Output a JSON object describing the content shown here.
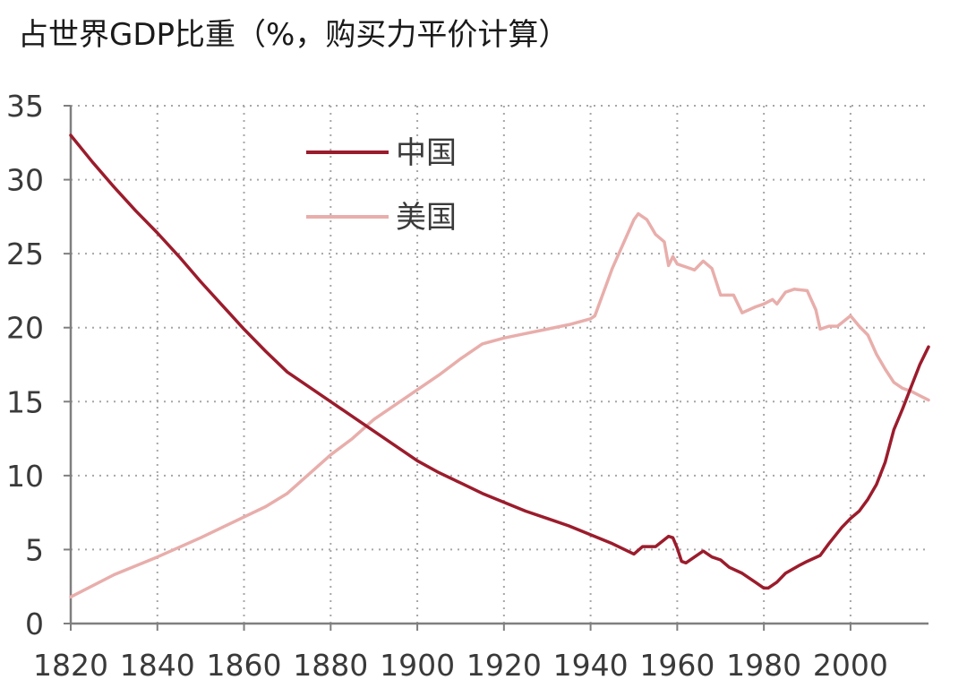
{
  "chart_data": {
    "type": "line",
    "title": "占世界GDP比重（%，购买力平价计算）",
    "xlabel": "",
    "ylabel": "",
    "xlim": [
      1820,
      2018
    ],
    "ylim": [
      0,
      35
    ],
    "xticks": [
      1820,
      1840,
      1860,
      1880,
      1900,
      1920,
      1940,
      1960,
      1980,
      2000
    ],
    "yticks": [
      0,
      5,
      10,
      15,
      20,
      25,
      30,
      35
    ],
    "grid": true,
    "legend_position": "top-center",
    "series": [
      {
        "name": "中国",
        "color": "#9b1c2c",
        "points": [
          [
            1820,
            33.0
          ],
          [
            1825,
            31.2
          ],
          [
            1830,
            29.5
          ],
          [
            1835,
            27.9
          ],
          [
            1840,
            26.4
          ],
          [
            1845,
            24.8
          ],
          [
            1850,
            23.1
          ],
          [
            1855,
            21.5
          ],
          [
            1860,
            19.9
          ],
          [
            1865,
            18.4
          ],
          [
            1870,
            17.0
          ],
          [
            1875,
            16.0
          ],
          [
            1880,
            15.0
          ],
          [
            1885,
            14.0
          ],
          [
            1890,
            13.0
          ],
          [
            1895,
            12.0
          ],
          [
            1900,
            11.0
          ],
          [
            1905,
            10.2
          ],
          [
            1910,
            9.5
          ],
          [
            1915,
            8.8
          ],
          [
            1920,
            8.2
          ],
          [
            1925,
            7.6
          ],
          [
            1930,
            7.1
          ],
          [
            1935,
            6.6
          ],
          [
            1940,
            6.0
          ],
          [
            1945,
            5.4
          ],
          [
            1950,
            4.7
          ],
          [
            1952,
            5.2
          ],
          [
            1955,
            5.2
          ],
          [
            1958,
            5.9
          ],
          [
            1959,
            5.8
          ],
          [
            1960,
            5.1
          ],
          [
            1961,
            4.2
          ],
          [
            1962,
            4.1
          ],
          [
            1964,
            4.5
          ],
          [
            1966,
            4.9
          ],
          [
            1968,
            4.5
          ],
          [
            1970,
            4.3
          ],
          [
            1972,
            3.8
          ],
          [
            1975,
            3.4
          ],
          [
            1978,
            2.8
          ],
          [
            1980,
            2.4
          ],
          [
            1981,
            2.4
          ],
          [
            1983,
            2.8
          ],
          [
            1985,
            3.4
          ],
          [
            1988,
            3.9
          ],
          [
            1990,
            4.2
          ],
          [
            1993,
            4.6
          ],
          [
            1995,
            5.4
          ],
          [
            1998,
            6.5
          ],
          [
            2000,
            7.1
          ],
          [
            2002,
            7.6
          ],
          [
            2004,
            8.4
          ],
          [
            2006,
            9.4
          ],
          [
            2008,
            10.9
          ],
          [
            2010,
            13.1
          ],
          [
            2012,
            14.5
          ],
          [
            2014,
            16.0
          ],
          [
            2016,
            17.5
          ],
          [
            2018,
            18.7
          ]
        ]
      },
      {
        "name": "美国",
        "color": "#e8aeab",
        "points": [
          [
            1820,
            1.8
          ],
          [
            1830,
            3.3
          ],
          [
            1840,
            4.5
          ],
          [
            1850,
            5.8
          ],
          [
            1860,
            7.2
          ],
          [
            1865,
            7.9
          ],
          [
            1870,
            8.8
          ],
          [
            1875,
            10.1
          ],
          [
            1880,
            11.4
          ],
          [
            1885,
            12.5
          ],
          [
            1890,
            13.8
          ],
          [
            1895,
            14.8
          ],
          [
            1900,
            15.8
          ],
          [
            1905,
            16.8
          ],
          [
            1910,
            17.9
          ],
          [
            1915,
            18.9
          ],
          [
            1920,
            19.3
          ],
          [
            1925,
            19.6
          ],
          [
            1930,
            19.9
          ],
          [
            1935,
            20.2
          ],
          [
            1940,
            20.6
          ],
          [
            1941,
            20.8
          ],
          [
            1945,
            24.0
          ],
          [
            1950,
            27.3
          ],
          [
            1951,
            27.7
          ],
          [
            1953,
            27.3
          ],
          [
            1955,
            26.3
          ],
          [
            1957,
            25.8
          ],
          [
            1958,
            24.2
          ],
          [
            1959,
            24.8
          ],
          [
            1960,
            24.3
          ],
          [
            1962,
            24.1
          ],
          [
            1964,
            23.9
          ],
          [
            1966,
            24.5
          ],
          [
            1968,
            24.0
          ],
          [
            1970,
            22.2
          ],
          [
            1973,
            22.2
          ],
          [
            1975,
            21.0
          ],
          [
            1978,
            21.4
          ],
          [
            1980,
            21.6
          ],
          [
            1982,
            21.9
          ],
          [
            1983,
            21.6
          ],
          [
            1985,
            22.4
          ],
          [
            1987,
            22.6
          ],
          [
            1990,
            22.5
          ],
          [
            1992,
            21.2
          ],
          [
            1993,
            19.9
          ],
          [
            1995,
            20.1
          ],
          [
            1997,
            20.1
          ],
          [
            2000,
            20.8
          ],
          [
            2002,
            20.1
          ],
          [
            2004,
            19.5
          ],
          [
            2006,
            18.2
          ],
          [
            2008,
            17.2
          ],
          [
            2010,
            16.3
          ],
          [
            2012,
            15.9
          ],
          [
            2014,
            15.7
          ],
          [
            2016,
            15.4
          ],
          [
            2018,
            15.1
          ]
        ]
      }
    ]
  }
}
